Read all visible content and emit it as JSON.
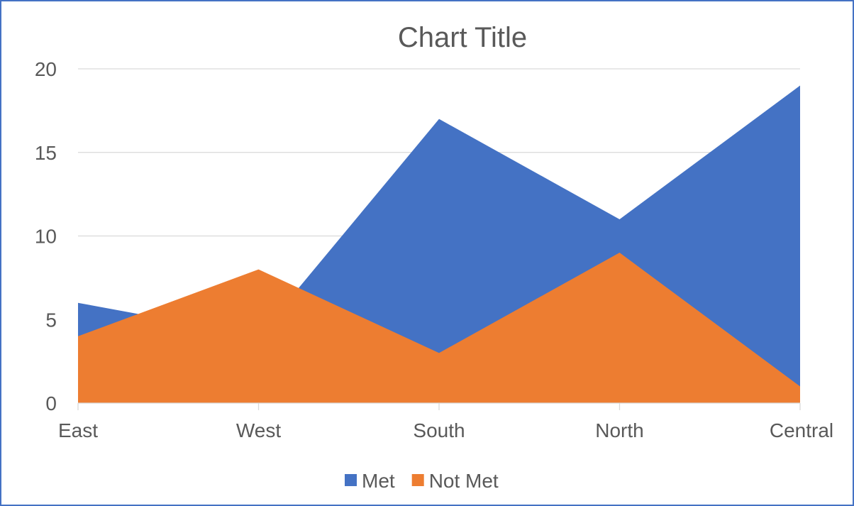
{
  "chart_data": {
    "type": "area",
    "title": "Chart Title",
    "categories": [
      "East",
      "West",
      "South",
      "North",
      "Central"
    ],
    "series": [
      {
        "name": "Met",
        "values": [
          6,
          4,
          17,
          11,
          19
        ],
        "color": "#4472c4"
      },
      {
        "name": "Not Met",
        "values": [
          4,
          8,
          3,
          9,
          1
        ],
        "color": "#ed7d31"
      }
    ],
    "ylim": [
      0,
      20
    ],
    "yticks": [
      0,
      5,
      10,
      15,
      20
    ],
    "grid": true,
    "legend": "bottom",
    "xlabel": "",
    "ylabel": ""
  }
}
